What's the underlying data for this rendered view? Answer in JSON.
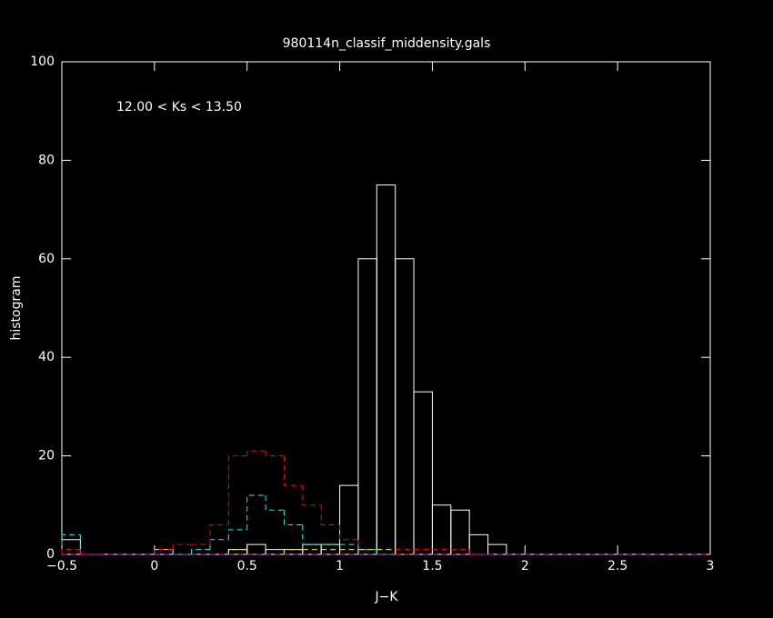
{
  "chart_data": {
    "type": "histogram",
    "title": "980114n_classif_middensity.gals",
    "annotation": "12.00 < Ks <  13.50",
    "x_label": "J−K",
    "y_label": "histogram",
    "bins": [
      -0.5,
      -0.4,
      -0.3,
      -0.2,
      -0.1,
      0,
      0.1,
      0.2,
      0.3,
      0.4,
      0.5,
      0.6,
      0.7,
      0.8,
      0.9,
      1,
      1.1,
      1.2,
      1.3,
      1.4,
      1.5,
      1.6,
      1.7,
      1.8,
      1.9,
      2,
      2.1,
      2.2,
      2.3,
      2.4,
      2.5,
      2.6,
      2.7,
      2.8,
      2.9,
      3
    ],
    "series": [
      {
        "color": "#ffffff",
        "values": [
          3,
          0,
          0,
          0,
          0,
          1,
          0,
          0,
          0,
          1,
          2,
          1,
          1,
          2,
          2,
          14,
          60,
          75,
          60,
          33,
          10,
          9,
          4,
          2,
          0,
          0,
          0,
          0,
          0,
          0,
          0,
          0,
          0,
          0,
          0
        ]
      },
      {
        "color": "#00ffff",
        "values": [
          4,
          0,
          0,
          0,
          0,
          1,
          0,
          1,
          3,
          5,
          12,
          9,
          6,
          2,
          2,
          2,
          1,
          0,
          0,
          0,
          0,
          0,
          0,
          0,
          0,
          0,
          0,
          0,
          0,
          0,
          0,
          0,
          0,
          0,
          0
        ]
      },
      {
        "color": "#ff0000",
        "values": [
          1,
          0,
          0,
          0,
          0,
          1,
          2,
          2,
          6,
          20,
          21,
          20,
          14,
          10,
          6,
          3,
          1,
          1,
          1,
          1,
          1,
          1,
          0,
          0,
          0,
          0,
          0,
          0,
          0,
          0,
          0,
          0,
          0,
          0,
          0
        ]
      },
      {
        "color": "#ffff00",
        "values": [
          0,
          0,
          0,
          0,
          0,
          0,
          0,
          0,
          0,
          1,
          0,
          0,
          1,
          1,
          1,
          1,
          1,
          1,
          0,
          0,
          0,
          0,
          0,
          0,
          0,
          0,
          0,
          0,
          0,
          0,
          0,
          0,
          0,
          0,
          0
        ]
      },
      {
        "color": "#ff00ff",
        "values": [
          0,
          0,
          0,
          0,
          0,
          0,
          0,
          0,
          0,
          0,
          0,
          0,
          0,
          0,
          0,
          0,
          0,
          0,
          0,
          0,
          0,
          0,
          0,
          0,
          0,
          0,
          0,
          0,
          0,
          0,
          0,
          0,
          0,
          0,
          0
        ]
      }
    ],
    "xlim": [
      -0.5,
      3
    ],
    "ylim": [
      0,
      100
    ],
    "xticks": [
      {
        "value": -0.5,
        "label": "−0.5"
      },
      0,
      0.5,
      1,
      1.5,
      2,
      2.5,
      3
    ],
    "yticks": [
      0,
      20,
      40,
      60,
      80,
      100
    ],
    "frame_color": "#ffffff"
  }
}
